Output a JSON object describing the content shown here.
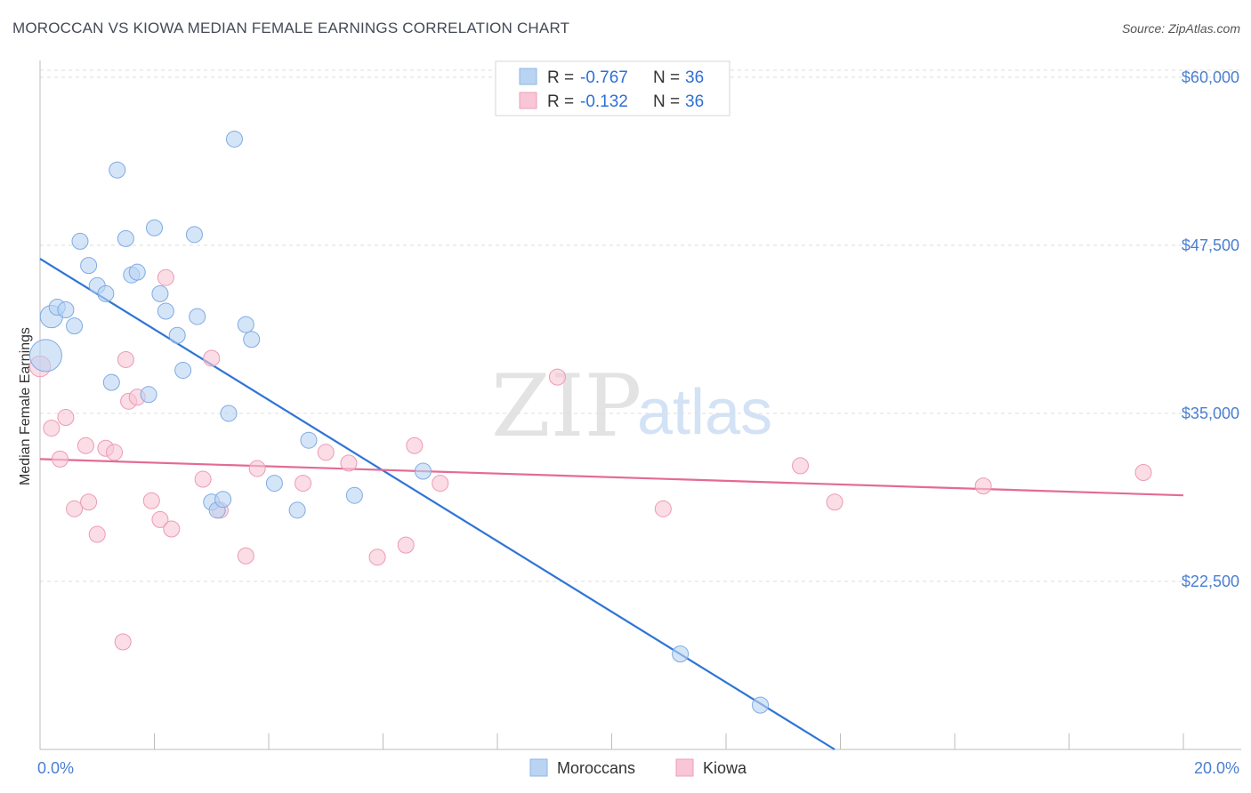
{
  "title": "MOROCCAN VS KIOWA MEDIAN FEMALE EARNINGS CORRELATION CHART",
  "source": "Source: ZipAtlas.com",
  "watermark": {
    "zip": "ZIP",
    "atlas": "atlas"
  },
  "colors": {
    "moroccans": "#2f75d6",
    "moroccans_fill": "#b9d3f3",
    "kiowa": "#e46b93",
    "kiowa_fill": "#f8c6d6",
    "tick_text": "#4a7fd0",
    "grid": "#dddddd"
  },
  "legend": {
    "rows": [
      {
        "r_label": "R = ",
        "r_value": "-0.767",
        "n_label": "N = ",
        "n_value": "36"
      },
      {
        "r_label": "R = ",
        "r_value": "-0.132",
        "n_label": "N = ",
        "n_value": "36"
      }
    ],
    "bottom": [
      "Moroccans",
      "Kiowa"
    ]
  },
  "chart_data": {
    "type": "scatter",
    "title": "MOROCCAN VS KIOWA MEDIAN FEMALE EARNINGS CORRELATION CHART",
    "xlabel": "",
    "ylabel": "Median Female Earnings",
    "xlim": [
      0,
      20
    ],
    "ylim": [
      10000,
      61250
    ],
    "x_tick_labels": [
      "0.0%",
      "20.0%"
    ],
    "y_ticks": [
      22500,
      35000,
      47500,
      60000
    ],
    "y_tick_labels": [
      "$22,500",
      "$35,000",
      "$47,500",
      "$60,000"
    ],
    "grid": true,
    "legend_position": "top-center",
    "series": [
      {
        "name": "Moroccans",
        "r": -0.767,
        "n": 36,
        "trend": {
          "x": [
            0,
            13.9
          ],
          "y": [
            46500,
            10000
          ]
        },
        "points": [
          [
            0.1,
            39300,
            2.0
          ],
          [
            0.2,
            42200,
            1.4
          ],
          [
            0.3,
            42900,
            1.0
          ],
          [
            0.45,
            42700,
            1.0
          ],
          [
            0.6,
            41500,
            1.0
          ],
          [
            0.7,
            47800,
            1.0
          ],
          [
            0.85,
            46000,
            1.0
          ],
          [
            1.0,
            44500,
            1.0
          ],
          [
            1.15,
            43900,
            1.0
          ],
          [
            1.25,
            37300,
            1.0
          ],
          [
            1.35,
            53100,
            1.0
          ],
          [
            1.5,
            48000,
            1.0
          ],
          [
            1.6,
            45300,
            1.0
          ],
          [
            1.7,
            45500,
            1.0
          ],
          [
            1.9,
            36400,
            1.0
          ],
          [
            2.0,
            48800,
            1.0
          ],
          [
            2.1,
            43900,
            1.0
          ],
          [
            2.2,
            42600,
            1.0
          ],
          [
            2.4,
            40800,
            1.0
          ],
          [
            2.5,
            38200,
            1.0
          ],
          [
            2.7,
            48300,
            1.0
          ],
          [
            2.75,
            42200,
            1.0
          ],
          [
            3.0,
            28400,
            1.0
          ],
          [
            3.1,
            27800,
            1.0
          ],
          [
            3.2,
            28600,
            1.0
          ],
          [
            3.3,
            35000,
            1.0
          ],
          [
            3.4,
            55400,
            1.0
          ],
          [
            3.6,
            41600,
            1.0
          ],
          [
            3.7,
            40500,
            1.0
          ],
          [
            4.1,
            29800,
            1.0
          ],
          [
            4.5,
            27800,
            1.0
          ],
          [
            4.7,
            33000,
            1.0
          ],
          [
            5.5,
            28900,
            1.0
          ],
          [
            6.7,
            30700,
            1.0
          ],
          [
            11.2,
            17100,
            1.0
          ],
          [
            12.6,
            13300,
            1.0
          ]
        ]
      },
      {
        "name": "Kiowa",
        "r": -0.132,
        "n": 36,
        "trend": {
          "x": [
            0,
            20
          ],
          "y": [
            31600,
            28900
          ]
        },
        "points": [
          [
            0.0,
            38500,
            1.3
          ],
          [
            0.2,
            33900,
            1.0
          ],
          [
            0.35,
            31600,
            1.0
          ],
          [
            0.45,
            34700,
            1.0
          ],
          [
            0.6,
            27900,
            1.0
          ],
          [
            0.8,
            32600,
            1.0
          ],
          [
            0.85,
            28400,
            1.0
          ],
          [
            1.0,
            26000,
            1.0
          ],
          [
            1.15,
            32400,
            1.0
          ],
          [
            1.3,
            32100,
            1.0
          ],
          [
            1.45,
            18000,
            1.0
          ],
          [
            1.5,
            39000,
            1.0
          ],
          [
            1.55,
            35900,
            1.0
          ],
          [
            1.7,
            36200,
            1.0
          ],
          [
            1.95,
            28500,
            1.0
          ],
          [
            2.1,
            27100,
            1.0
          ],
          [
            2.2,
            45100,
            1.0
          ],
          [
            2.3,
            26400,
            1.0
          ],
          [
            2.85,
            30100,
            1.0
          ],
          [
            3.0,
            39100,
            1.0
          ],
          [
            3.15,
            27800,
            1.0
          ],
          [
            3.6,
            24400,
            1.0
          ],
          [
            3.8,
            30900,
            1.0
          ],
          [
            4.6,
            29800,
            1.0
          ],
          [
            5.0,
            32100,
            1.0
          ],
          [
            5.4,
            31300,
            1.0
          ],
          [
            5.9,
            24300,
            1.0
          ],
          [
            6.4,
            25200,
            1.0
          ],
          [
            6.55,
            32600,
            1.0
          ],
          [
            7.0,
            29800,
            1.0
          ],
          [
            9.05,
            37700,
            1.0
          ],
          [
            10.9,
            27900,
            1.0
          ],
          [
            13.3,
            31100,
            1.0
          ],
          [
            13.9,
            28400,
            1.0
          ],
          [
            16.5,
            29600,
            1.0
          ],
          [
            19.3,
            30600,
            1.0
          ]
        ]
      }
    ]
  }
}
